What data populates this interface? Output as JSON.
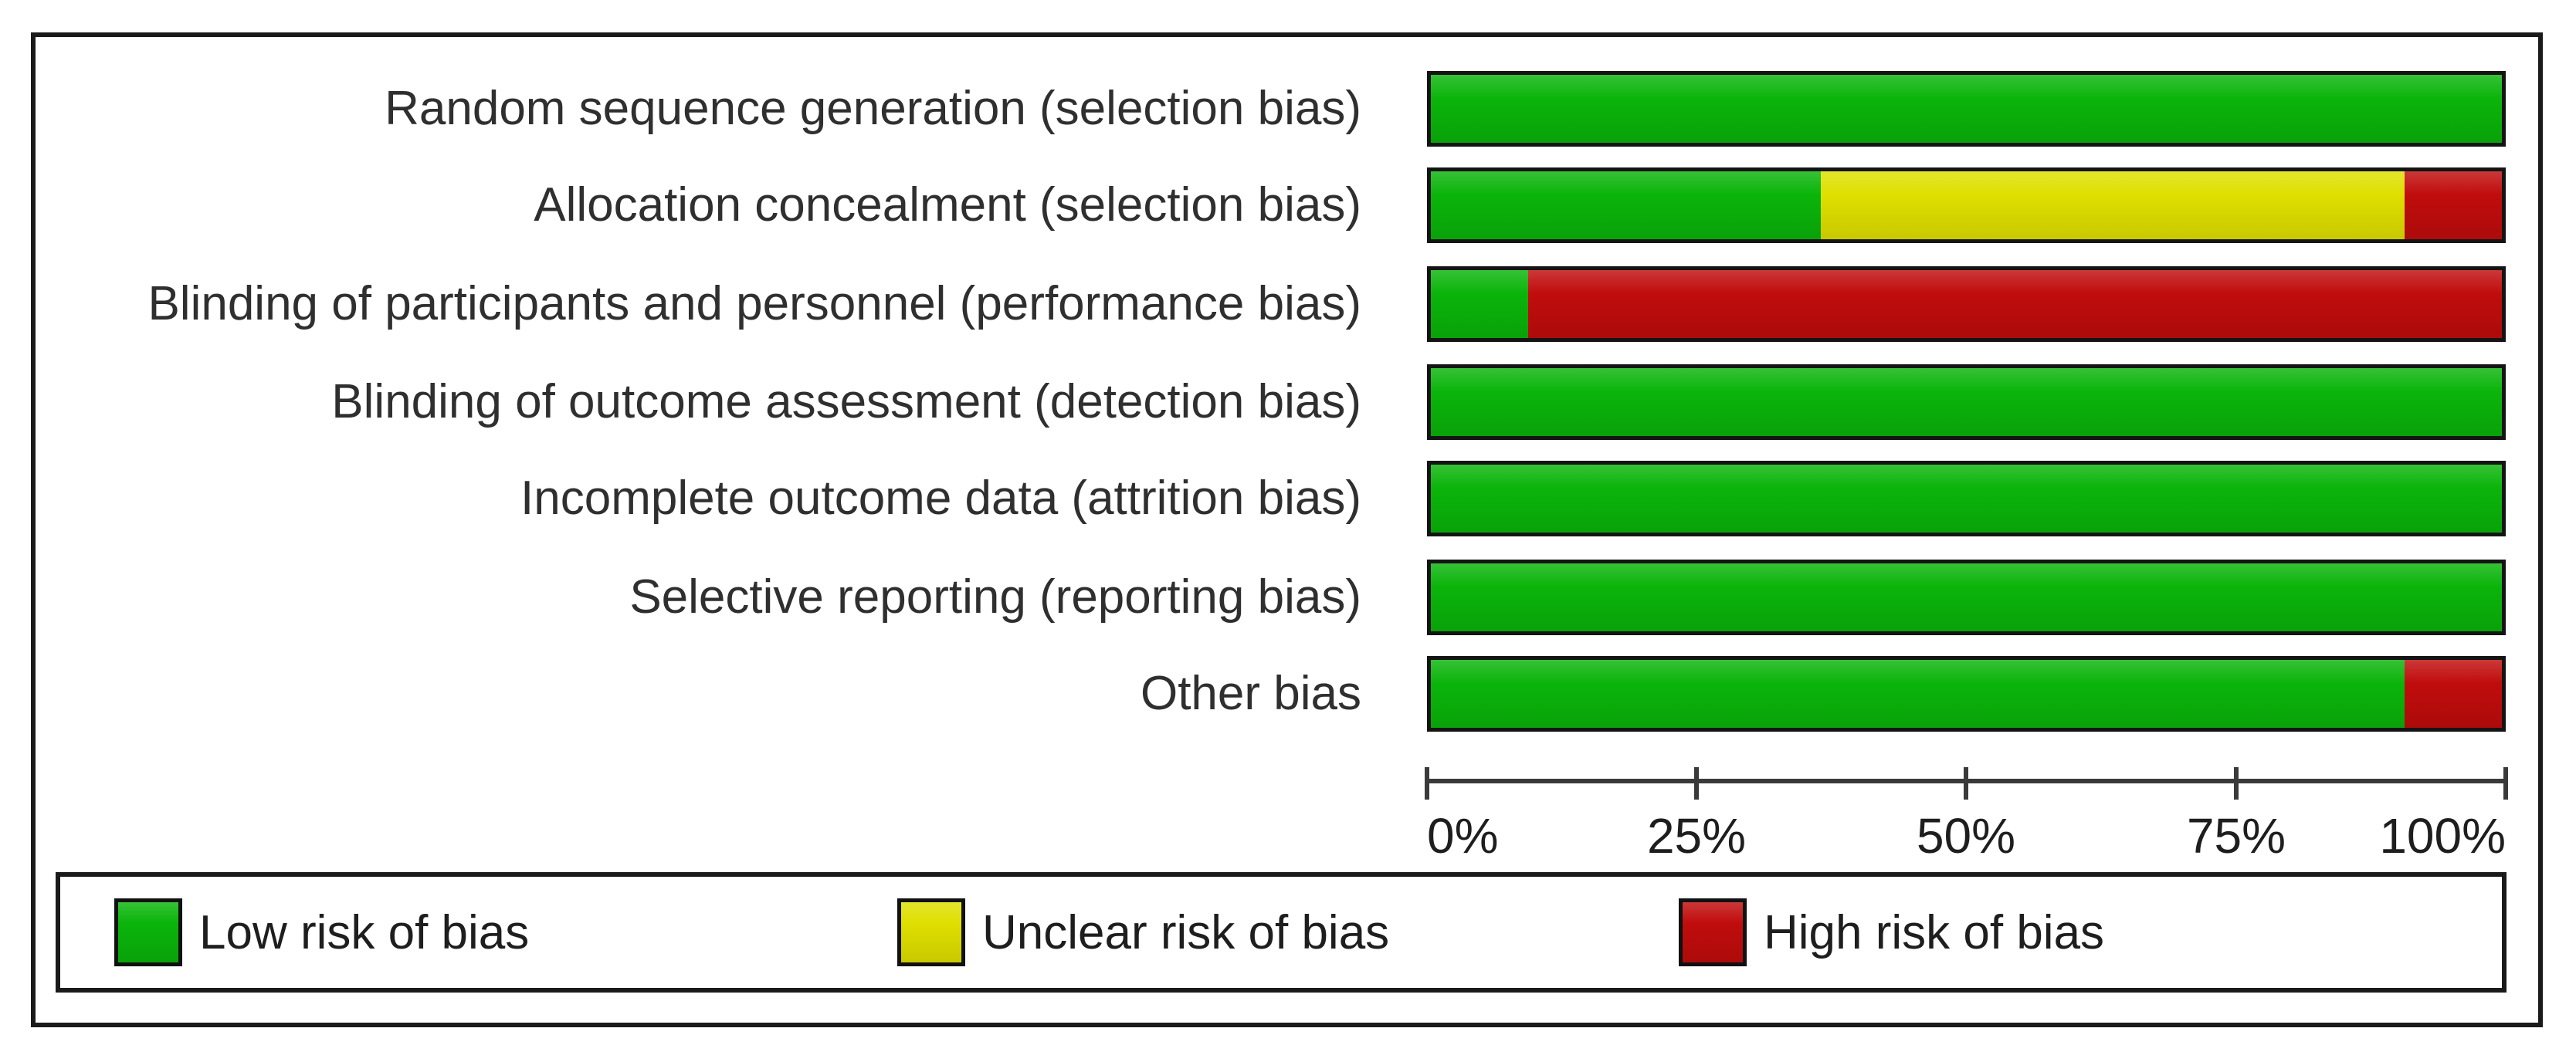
{
  "chart_data": {
    "type": "bar",
    "orientation": "horizontal",
    "stacked": true,
    "units": "percent",
    "title": "",
    "xlabel": "",
    "ylabel": "",
    "categories": [
      "Random sequence generation (selection bias)",
      "Allocation concealment (selection bias)",
      "Blinding of participants and personnel (performance bias)",
      "Blinding of outcome assessment (detection bias)",
      "Incomplete outcome data (attrition bias)",
      "Selective reporting (reporting bias)",
      "Other bias"
    ],
    "series": [
      {
        "name": "Low risk of bias",
        "color": "#0ab40a",
        "values": [
          100,
          36.4,
          9.1,
          100,
          100,
          100,
          90.9
        ]
      },
      {
        "name": "Unclear risk of bias",
        "color": "#dfdf00",
        "values": [
          0,
          54.5,
          0,
          0,
          0,
          0,
          0
        ]
      },
      {
        "name": "High risk of bias",
        "color": "#c00c0c",
        "values": [
          0,
          9.1,
          90.9,
          0,
          0,
          0,
          9.1
        ]
      }
    ],
    "x_ticks": [
      "0%",
      "25%",
      "50%",
      "75%",
      "100%"
    ],
    "xlim": [
      0,
      100
    ],
    "grid": false,
    "legend": {
      "position": "bottom",
      "items": [
        {
          "label": "Low risk of bias",
          "color": "#0ab40a"
        },
        {
          "label": "Unclear risk of bias",
          "color": "#dfdf00"
        },
        {
          "label": "High risk of bias",
          "color": "#c00c0c"
        }
      ]
    }
  }
}
